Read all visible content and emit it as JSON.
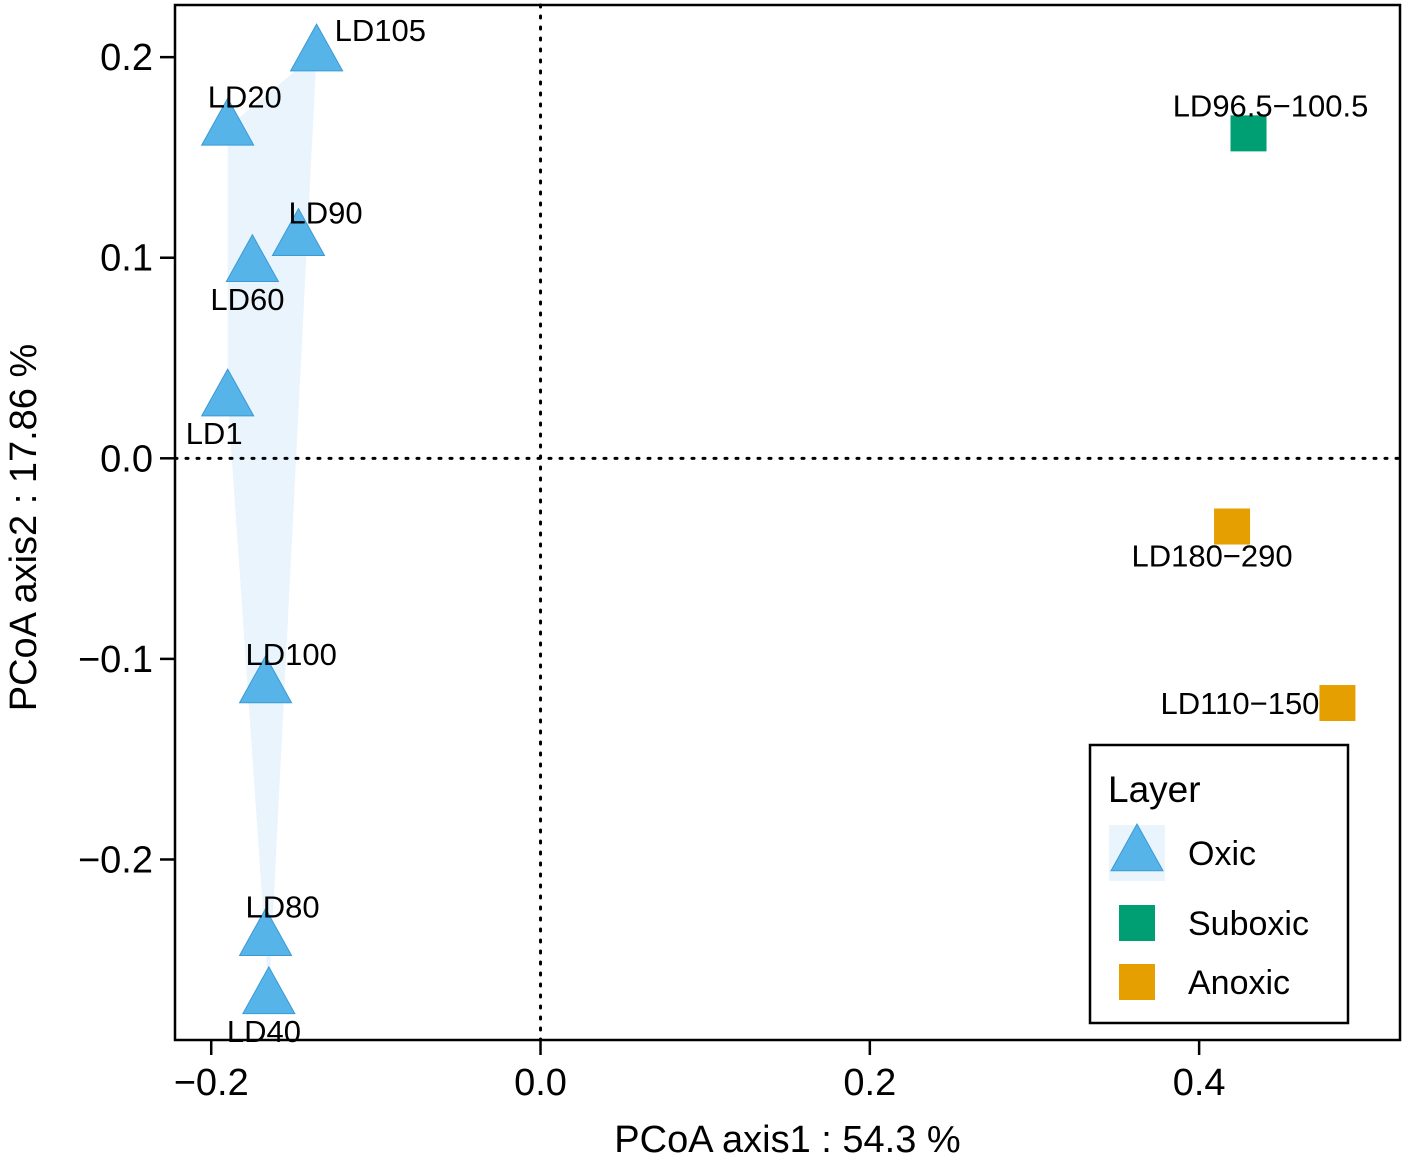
{
  "chart_data": {
    "type": "scatter",
    "xlabel": "PCoA axis1 : 54.3 %",
    "ylabel": "PCoA axis2 : 17.86 %",
    "xlim": [
      -0.222,
      0.522
    ],
    "ylim": [
      -0.29,
      0.226
    ],
    "xticks": [
      -0.2,
      0.0,
      0.2,
      0.4
    ],
    "xtick_labels": [
      "−0.2",
      "0.0",
      "0.2",
      "0.4"
    ],
    "yticks": [
      -0.2,
      -0.1,
      0.0,
      0.1,
      0.2
    ],
    "ytick_labels": [
      "−0.2",
      "−0.1",
      "0.0",
      "0.1",
      "0.2"
    ],
    "reference_lines": {
      "x": 0.0,
      "y": 0.0,
      "style": "dotted"
    },
    "legend": {
      "title": "Layer",
      "position": "bottom-right",
      "entries": [
        {
          "label": "Oxic",
          "shape": "triangle",
          "color": "#56B4E9"
        },
        {
          "label": "Suboxic",
          "shape": "square",
          "color": "#009E73"
        },
        {
          "label": "Anoxic",
          "shape": "square",
          "color": "#E69F00"
        }
      ]
    },
    "series": [
      {
        "name": "Oxic",
        "shape": "triangle",
        "color": "#56B4E9",
        "hull_color": "#EAF4FC",
        "points": [
          {
            "label": "LD105",
            "x": -0.136,
            "y": 0.202,
            "label_pos": "right"
          },
          {
            "label": "LD20",
            "x": -0.19,
            "y": 0.165,
            "label_pos": "above"
          },
          {
            "label": "LD90",
            "x": -0.147,
            "y": 0.11,
            "label_pos": "right-above"
          },
          {
            "label": "LD60",
            "x": -0.175,
            "y": 0.097,
            "label_pos": "below"
          },
          {
            "label": "LD1",
            "x": -0.19,
            "y": 0.03,
            "label_pos": "below"
          },
          {
            "label": "LD100",
            "x": -0.167,
            "y": -0.113,
            "label_pos": "above"
          },
          {
            "label": "LD80",
            "x": -0.167,
            "y": -0.239,
            "label_pos": "above"
          },
          {
            "label": "LD40",
            "x": -0.165,
            "y": -0.268,
            "label_pos": "below"
          }
        ]
      },
      {
        "name": "Suboxic",
        "shape": "square",
        "color": "#009E73",
        "points": [
          {
            "label": "LD96.5−100.5",
            "x": 0.43,
            "y": 0.162,
            "label_pos": "above"
          }
        ]
      },
      {
        "name": "Anoxic",
        "shape": "square",
        "color": "#E69F00",
        "points": [
          {
            "label": "LD180−290",
            "x": 0.42,
            "y": -0.034,
            "label_pos": "below"
          },
          {
            "label": "LD110−150",
            "x": 0.484,
            "y": -0.122,
            "label_pos": "left"
          }
        ]
      }
    ]
  }
}
